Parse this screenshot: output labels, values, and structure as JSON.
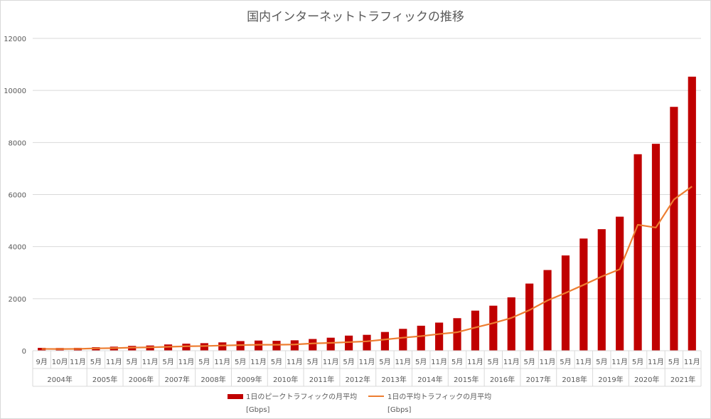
{
  "chart_data": {
    "type": "bar",
    "title": "国内インターネットトラフィックの推移",
    "xlabel": "",
    "ylabel": "",
    "ylim": [
      0,
      12000
    ],
    "yticks": [
      "0",
      "2000",
      "4000",
      "6000",
      "8000",
      "10000",
      "12000"
    ],
    "grid": true,
    "legend_position": "bottom",
    "categories": [
      "9月",
      "10月",
      "11月",
      "5月",
      "11月",
      "5月",
      "11月",
      "5月",
      "11月",
      "5月",
      "11月",
      "5月",
      "11月",
      "5月",
      "11月",
      "5月",
      "11月",
      "5月",
      "11月",
      "5月",
      "11月",
      "5月",
      "11月",
      "5月",
      "11月",
      "5月",
      "11月",
      "5月",
      "11月",
      "5月",
      "11月",
      "5月",
      "11月",
      "5月",
      "11月",
      "5月",
      "11月"
    ],
    "year_groups": [
      {
        "label": "2004年",
        "count": 3
      },
      {
        "label": "2005年",
        "count": 2
      },
      {
        "label": "2006年",
        "count": 2
      },
      {
        "label": "2007年",
        "count": 2
      },
      {
        "label": "2008年",
        "count": 2
      },
      {
        "label": "2009年",
        "count": 2
      },
      {
        "label": "2010年",
        "count": 2
      },
      {
        "label": "2011年",
        "count": 2
      },
      {
        "label": "2012年",
        "count": 2
      },
      {
        "label": "2013年",
        "count": 2
      },
      {
        "label": "2014年",
        "count": 2
      },
      {
        "label": "2015年",
        "count": 2
      },
      {
        "label": "2016年",
        "count": 2
      },
      {
        "label": "2017年",
        "count": 2
      },
      {
        "label": "2018年",
        "count": 2
      },
      {
        "label": "2019年",
        "count": 2
      },
      {
        "label": "2020年",
        "count": 2
      },
      {
        "label": "2021年",
        "count": 2
      }
    ],
    "series": [
      {
        "name": "1日のピークトラフィックの月平均",
        "unit": "[Gbps]",
        "kind": "bar",
        "color": "#c00000",
        "values": [
          110,
          105,
          110,
          135,
          155,
          185,
          200,
          240,
          270,
          290,
          320,
          370,
          390,
          380,
          400,
          450,
          500,
          580,
          610,
          720,
          840,
          960,
          1080,
          1250,
          1540,
          1730,
          2050,
          2580,
          3100,
          3660,
          4310,
          4670,
          5150,
          7550,
          7950,
          9370,
          10530
        ]
      },
      {
        "name": "1日の平均トラフィックの月平均",
        "unit": "[Gbps]",
        "kind": "line",
        "color": "#ed7d31",
        "values": [
          70,
          65,
          70,
          90,
          100,
          120,
          130,
          150,
          170,
          180,
          200,
          215,
          230,
          230,
          240,
          280,
          300,
          330,
          360,
          430,
          500,
          560,
          640,
          710,
          890,
          1060,
          1260,
          1560,
          1930,
          2220,
          2530,
          2850,
          3130,
          4840,
          4730,
          5810,
          6310
        ]
      }
    ]
  }
}
